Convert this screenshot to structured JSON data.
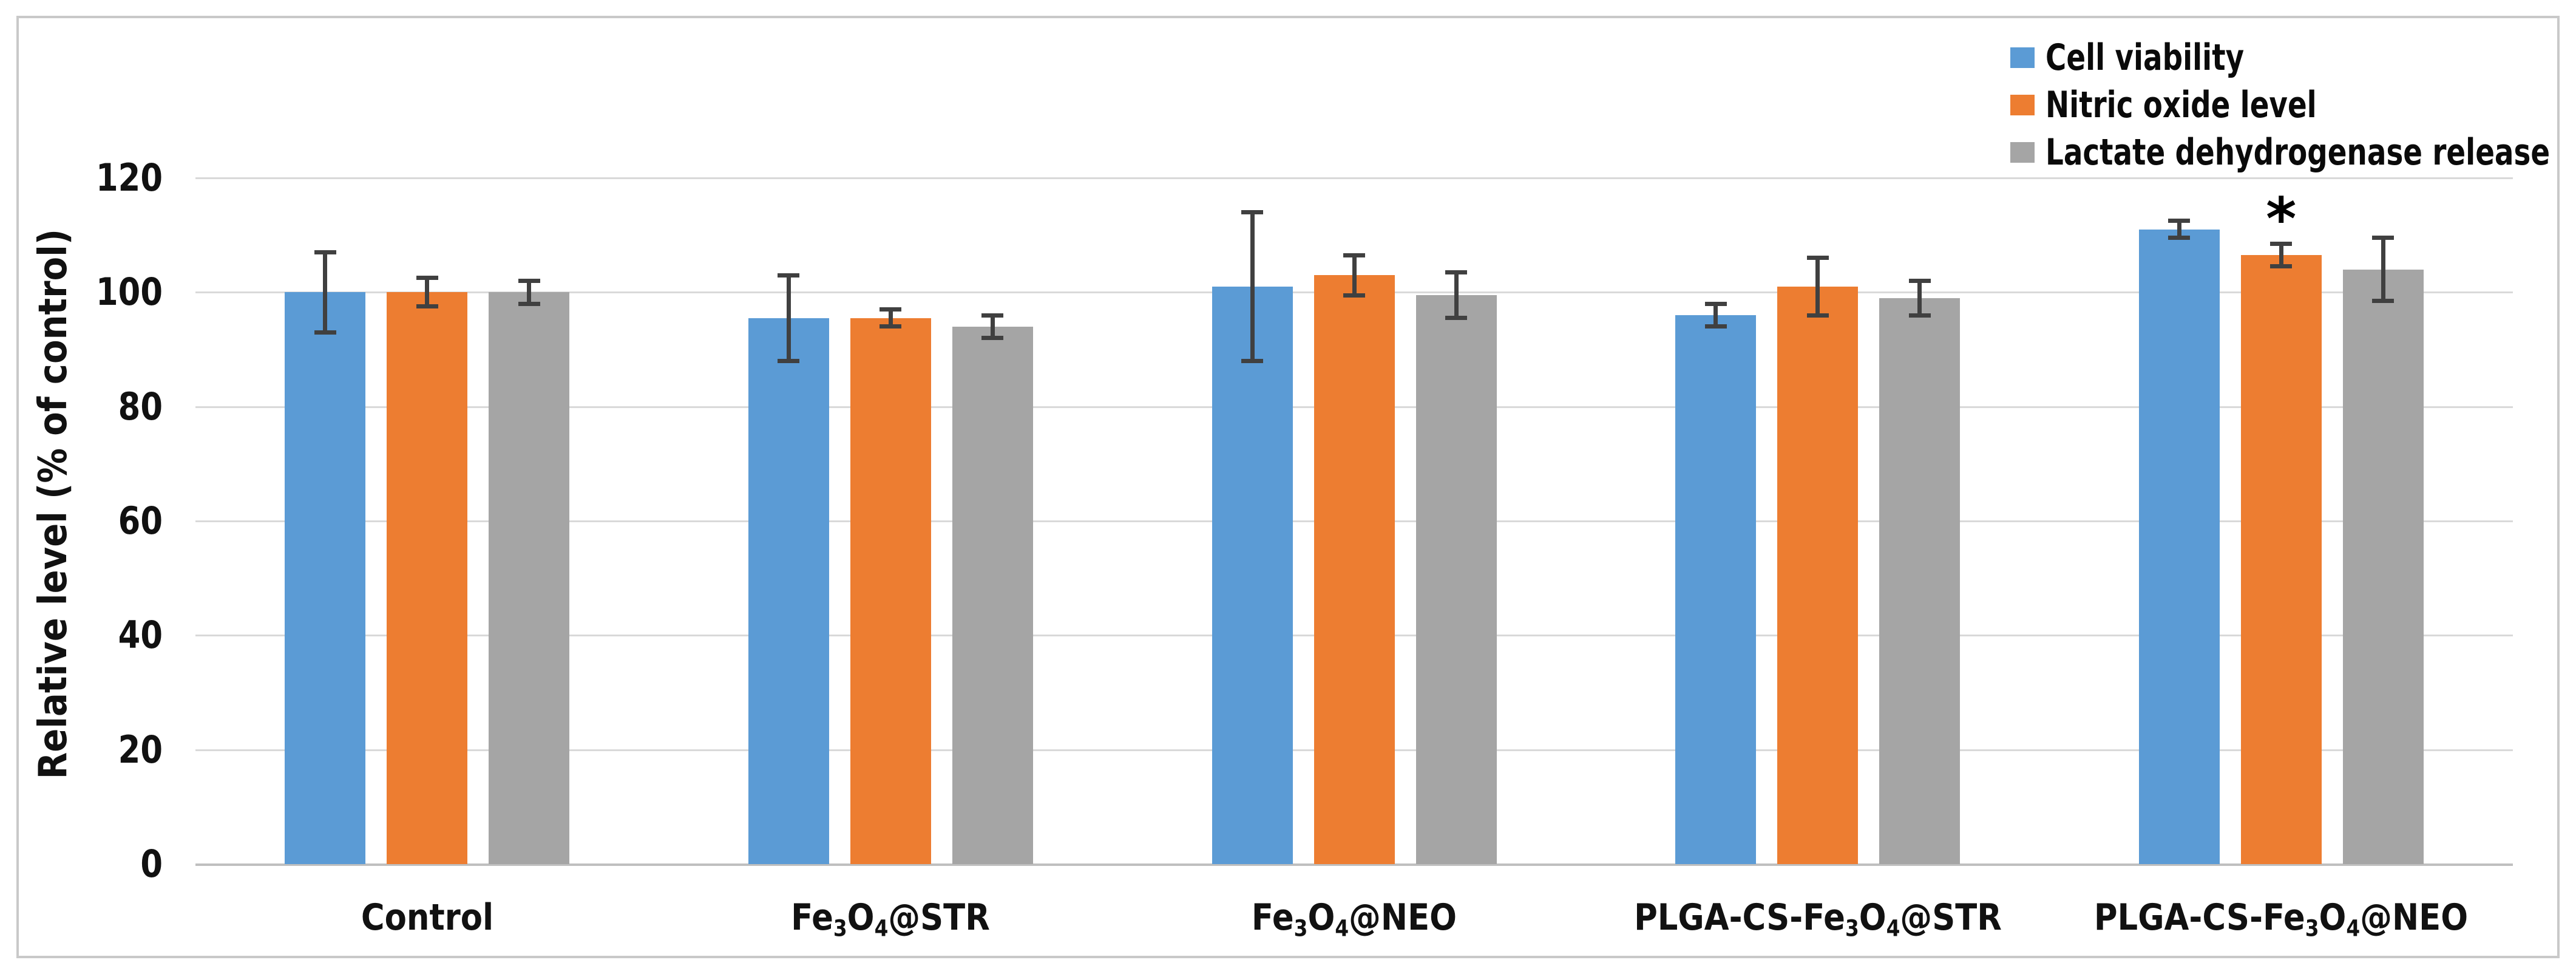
{
  "figure": {
    "description": "Grouped bar chart with error bars comparing cell viability, nitric oxide level and lactate dehydrogenase release across nanoparticle treatments",
    "background_color": "#ffffff",
    "border_color": "#c9c9c9"
  },
  "chart_data": {
    "type": "bar",
    "title": "",
    "xlabel": "",
    "ylabel": "Relative level (% of control)",
    "ylim": [
      0,
      120
    ],
    "y_ticks": [
      0,
      20,
      40,
      60,
      80,
      100,
      120
    ],
    "y_tick_labels": [
      "0",
      "20",
      "40",
      "60",
      "80",
      "100",
      "120"
    ],
    "grid": true,
    "legend_position": "top-right",
    "categories": [
      "Control",
      "Fe3O4@STR",
      "Fe3O4@NEO",
      "PLGA-CS-Fe3O4@STR",
      "PLGA-CS-Fe3O4@NEO"
    ],
    "categories_rich": [
      [
        {
          "text": "Control"
        }
      ],
      [
        {
          "text": "Fe"
        },
        {
          "text": "3",
          "subscript": true
        },
        {
          "text": "O"
        },
        {
          "text": "4",
          "subscript": true
        },
        {
          "text": "@STR"
        }
      ],
      [
        {
          "text": "Fe"
        },
        {
          "text": "3",
          "subscript": true
        },
        {
          "text": "O"
        },
        {
          "text": "4",
          "subscript": true
        },
        {
          "text": "@NEO"
        }
      ],
      [
        {
          "text": "PLGA-CS-Fe"
        },
        {
          "text": "3",
          "subscript": true
        },
        {
          "text": "O"
        },
        {
          "text": "4",
          "subscript": true
        },
        {
          "text": "@STR"
        }
      ],
      [
        {
          "text": "PLGA-CS-Fe"
        },
        {
          "text": "3",
          "subscript": true
        },
        {
          "text": "O"
        },
        {
          "text": "4",
          "subscript": true
        },
        {
          "text": "@NEO"
        }
      ]
    ],
    "series": [
      {
        "name": "Cell viability",
        "color": "#5b9bd5",
        "values": [
          100,
          95.5,
          101,
          96,
          111
        ],
        "errors": [
          7,
          7.5,
          13,
          2,
          1.5
        ]
      },
      {
        "name": "Nitric oxide level",
        "color": "#ed7d31",
        "values": [
          100,
          95.5,
          103,
          101,
          106.5
        ],
        "errors": [
          2.5,
          1.5,
          3.5,
          5,
          2
        ]
      },
      {
        "name": "Lactate dehydrogenase release",
        "color": "#a5a5a5",
        "values": [
          100,
          94,
          99.5,
          99,
          104
        ],
        "errors": [
          2,
          2,
          4,
          3,
          5.5
        ]
      }
    ],
    "annotations": [
      {
        "text": "*",
        "category_index": 4,
        "series_index": 1,
        "meaning": "statistically-significant-marker"
      }
    ],
    "error_bar_color": "#404040",
    "gridline_color": "#d9d9d9",
    "axis_line_color": "#bfbfbf"
  }
}
